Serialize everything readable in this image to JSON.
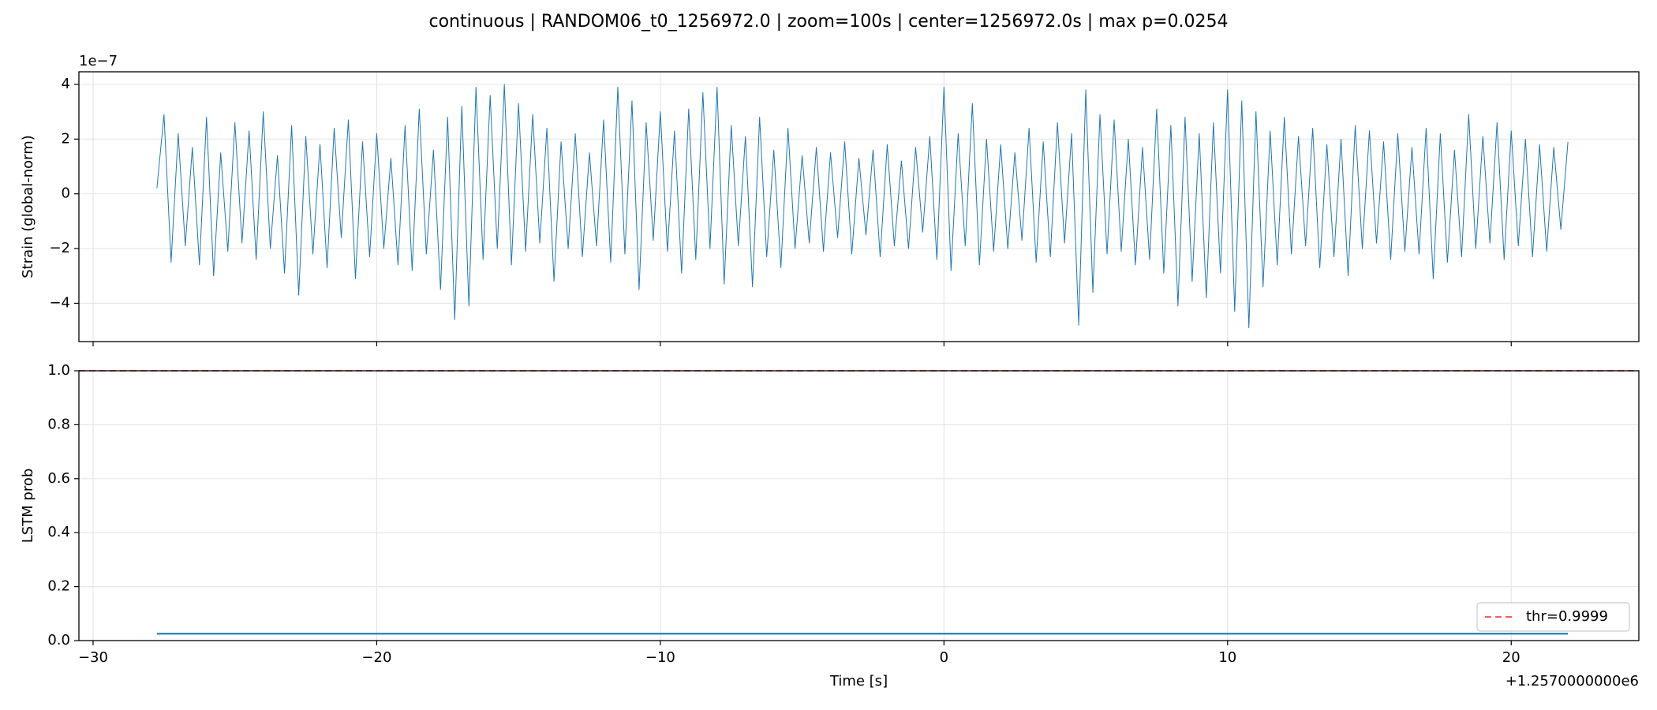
{
  "chart_data": [
    {
      "type": "line",
      "title": "continuous | RANDOM06_t0_1256972.0 | zoom=100s | center=1256972.0s | max p=0.0254",
      "ylabel": "Strain (global-norm)",
      "y_offset_label": "1e−7",
      "grid": true,
      "xlim": [
        -30.5,
        24.5
      ],
      "xticks": [
        {
          "value": -30,
          "label": "−30"
        },
        {
          "value": -20,
          "label": "−20"
        },
        {
          "value": -10,
          "label": "−10"
        },
        0,
        10,
        20
      ],
      "ylim": [
        -5.4,
        4.46
      ],
      "yticks": [
        {
          "value": -4,
          "label": "−4"
        },
        {
          "value": -2,
          "label": "−2"
        },
        0,
        2,
        4
      ],
      "x": [
        -27.75,
        -27.5,
        -27.25,
        -27,
        -26.75,
        -26.5,
        -26.25,
        -26,
        -25.75,
        -25.5,
        -25.25,
        -25,
        -24.75,
        -24.5,
        -24.25,
        -24,
        -23.75,
        -23.5,
        -23.25,
        -23,
        -22.75,
        -22.5,
        -22.25,
        -22,
        -21.75,
        -21.5,
        -21.25,
        -21,
        -20.75,
        -20.5,
        -20.25,
        -20,
        -19.75,
        -19.5,
        -19.25,
        -19,
        -18.75,
        -18.5,
        -18.25,
        -18,
        -17.75,
        -17.5,
        -17.25,
        -17,
        -16.75,
        -16.5,
        -16.25,
        -16,
        -15.75,
        -15.5,
        -15.25,
        -15,
        -14.75,
        -14.5,
        -14.25,
        -14,
        -13.75,
        -13.5,
        -13.25,
        -13,
        -12.75,
        -12.5,
        -12.25,
        -12,
        -11.75,
        -11.5,
        -11.25,
        -11,
        -10.75,
        -10.5,
        -10.25,
        -10,
        -9.75,
        -9.5,
        -9.25,
        -9,
        -8.75,
        -8.5,
        -8.25,
        -8,
        -7.75,
        -7.5,
        -7.25,
        -7,
        -6.75,
        -6.5,
        -6.25,
        -6,
        -5.75,
        -5.5,
        -5.25,
        -5,
        -4.75,
        -4.5,
        -4.25,
        -4,
        -3.75,
        -3.5,
        -3.25,
        -3,
        -2.75,
        -2.5,
        -2.25,
        -2,
        -1.75,
        -1.5,
        -1.25,
        -1,
        -0.75,
        -0.5,
        -0.25,
        0,
        0.25,
        0.5,
        0.75,
        1,
        1.25,
        1.5,
        1.75,
        2,
        2.25,
        2.5,
        2.75,
        3,
        3.25,
        3.5,
        3.75,
        4,
        4.25,
        4.5,
        4.75,
        5,
        5.25,
        5.5,
        5.75,
        6,
        6.25,
        6.5,
        6.75,
        7,
        7.25,
        7.5,
        7.75,
        8,
        8.25,
        8.5,
        8.75,
        9,
        9.25,
        9.5,
        9.75,
        10,
        10.25,
        10.5,
        10.75,
        11,
        11.25,
        11.5,
        11.75,
        12,
        12.25,
        12.5,
        12.75,
        13,
        13.25,
        13.5,
        13.75,
        14,
        14.25,
        14.5,
        14.75,
        15,
        15.25,
        15.5,
        15.75,
        16,
        16.25,
        16.5,
        16.75,
        17,
        17.25,
        17.5,
        17.75,
        18,
        18.25,
        18.5,
        18.75,
        19,
        19.25,
        19.5,
        19.75,
        20,
        20.25,
        20.5,
        20.75,
        21,
        21.25,
        21.5,
        21.75,
        22
      ],
      "series": [
        {
          "color": "#1f77b4",
          "values": [
            0.2,
            2.9,
            -2.5,
            2.2,
            -1.9,
            1.7,
            -2.6,
            2.8,
            -3.0,
            1.5,
            -2.1,
            2.6,
            -1.8,
            2.3,
            -2.4,
            3.0,
            -2.0,
            1.4,
            -2.9,
            2.5,
            -3.7,
            2.1,
            -2.2,
            1.8,
            -2.7,
            2.4,
            -1.6,
            2.7,
            -3.1,
            1.9,
            -2.3,
            2.2,
            -2.0,
            1.3,
            -2.6,
            2.5,
            -2.8,
            3.1,
            -2.2,
            1.6,
            -3.5,
            2.8,
            -4.6,
            3.2,
            -4.1,
            3.9,
            -2.4,
            3.6,
            -2.0,
            4.0,
            -2.6,
            3.3,
            -2.1,
            2.9,
            -1.8,
            2.4,
            -3.2,
            1.9,
            -2.0,
            2.2,
            -2.3,
            1.5,
            -1.9,
            2.7,
            -2.5,
            3.9,
            -2.2,
            3.4,
            -3.5,
            2.6,
            -1.7,
            3.0,
            -2.1,
            2.3,
            -2.9,
            3.1,
            -2.4,
            3.7,
            -2.0,
            3.9,
            -3.3,
            2.5,
            -1.9,
            2.1,
            -3.4,
            2.8,
            -2.3,
            1.6,
            -2.7,
            2.4,
            -2.0,
            1.4,
            -1.8,
            1.7,
            -2.1,
            1.5,
            -1.6,
            1.9,
            -2.2,
            1.3,
            -1.5,
            1.6,
            -2.3,
            1.8,
            -1.9,
            1.2,
            -2.0,
            1.7,
            -1.4,
            2.1,
            -2.4,
            3.9,
            -2.8,
            2.2,
            -1.9,
            3.3,
            -2.6,
            2.0,
            -2.1,
            1.8,
            -2.0,
            1.5,
            -1.7,
            2.4,
            -2.5,
            1.9,
            -2.3,
            2.6,
            -1.8,
            2.2,
            -4.8,
            3.8,
            -3.6,
            2.9,
            -2.2,
            2.7,
            -2.1,
            2.0,
            -2.6,
            1.7,
            -2.4,
            3.1,
            -2.9,
            2.5,
            -4.1,
            2.8,
            -3.2,
            2.2,
            -3.8,
            2.6,
            -2.9,
            3.8,
            -4.3,
            3.4,
            -4.9,
            3.0,
            -3.4,
            2.3,
            -2.6,
            2.8,
            -2.2,
            2.1,
            -1.9,
            2.4,
            -2.7,
            1.8,
            -2.3,
            2.0,
            -3.0,
            2.5,
            -2.0,
            2.3,
            -1.8,
            1.9,
            -2.4,
            2.2,
            -2.1,
            1.7,
            -2.2,
            2.4,
            -3.1,
            2.2,
            -2.5,
            1.6,
            -2.3,
            2.9,
            -2.0,
            2.1,
            -1.8,
            2.6,
            -2.4,
            2.3,
            -1.9,
            2.0,
            -2.3,
            1.8,
            -2.1,
            1.7,
            -1.3,
            1.9
          ]
        }
      ]
    },
    {
      "type": "line",
      "ylabel": "LSTM prob",
      "xlabel": "Time [s]",
      "x_offset_label": "+1.2570000000e6",
      "grid": true,
      "xlim": [
        -30.5,
        24.5
      ],
      "xticks": [
        {
          "value": -30,
          "label": "−30"
        },
        {
          "value": -20,
          "label": "−20"
        },
        {
          "value": -10,
          "label": "−10"
        },
        0,
        10,
        20
      ],
      "ylim": [
        0,
        1
      ],
      "yticks": [
        {
          "value": 0,
          "label": "0.0"
        },
        0.2,
        0.4,
        0.6,
        0.8,
        {
          "value": 1,
          "label": "1.0"
        }
      ],
      "x": [
        -27.75,
        -15,
        0,
        15,
        22
      ],
      "series": [
        {
          "color": "#1f77b4",
          "values": [
            0.0254,
            0.0254,
            0.0254,
            0.0254,
            0.0254
          ]
        }
      ],
      "hlines": [
        {
          "name": "thr=0.9999",
          "value": 0.9999,
          "color": "#ff4444",
          "dashed": true
        }
      ],
      "legend": "lower right"
    }
  ]
}
